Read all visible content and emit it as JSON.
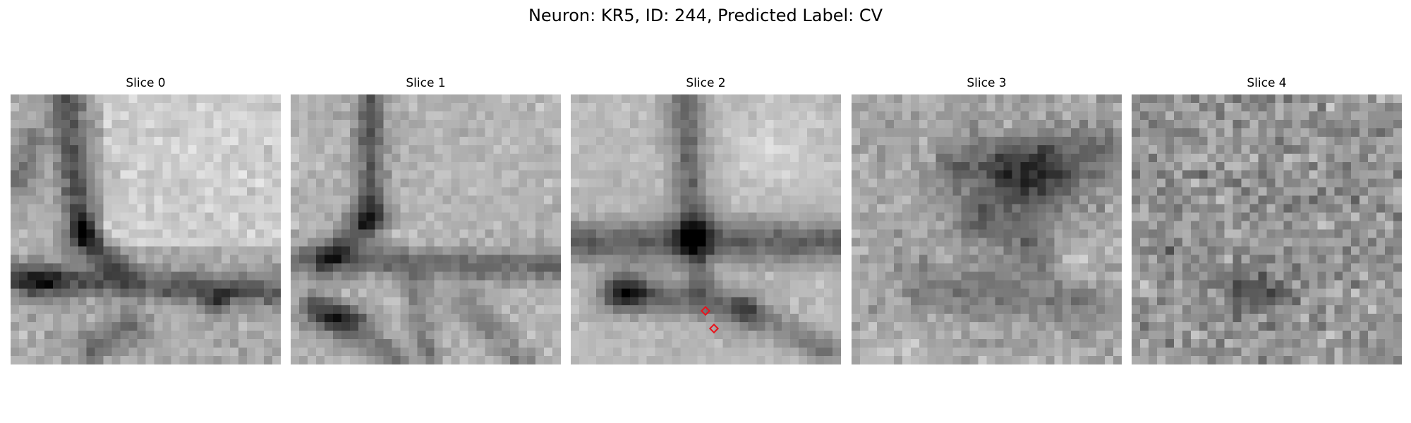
{
  "figure": {
    "title": "Neuron: KR5, ID: 244, Predicted Label: CV"
  },
  "panels": [
    {
      "title": "Slice 0",
      "seed": 11,
      "style": "slice0",
      "has_markers": false
    },
    {
      "title": "Slice 1",
      "seed": 23,
      "style": "slice1",
      "has_markers": false
    },
    {
      "title": "Slice 2",
      "seed": 37,
      "style": "slice2",
      "has_markers": true
    },
    {
      "title": "Slice 3",
      "seed": 51,
      "style": "slice3",
      "has_markers": false
    },
    {
      "title": "Slice 4",
      "seed": 67,
      "style": "slice4",
      "has_markers": false
    }
  ],
  "image": {
    "grid": 32,
    "colormap": "gray"
  },
  "marker_color": "#e8141c"
}
